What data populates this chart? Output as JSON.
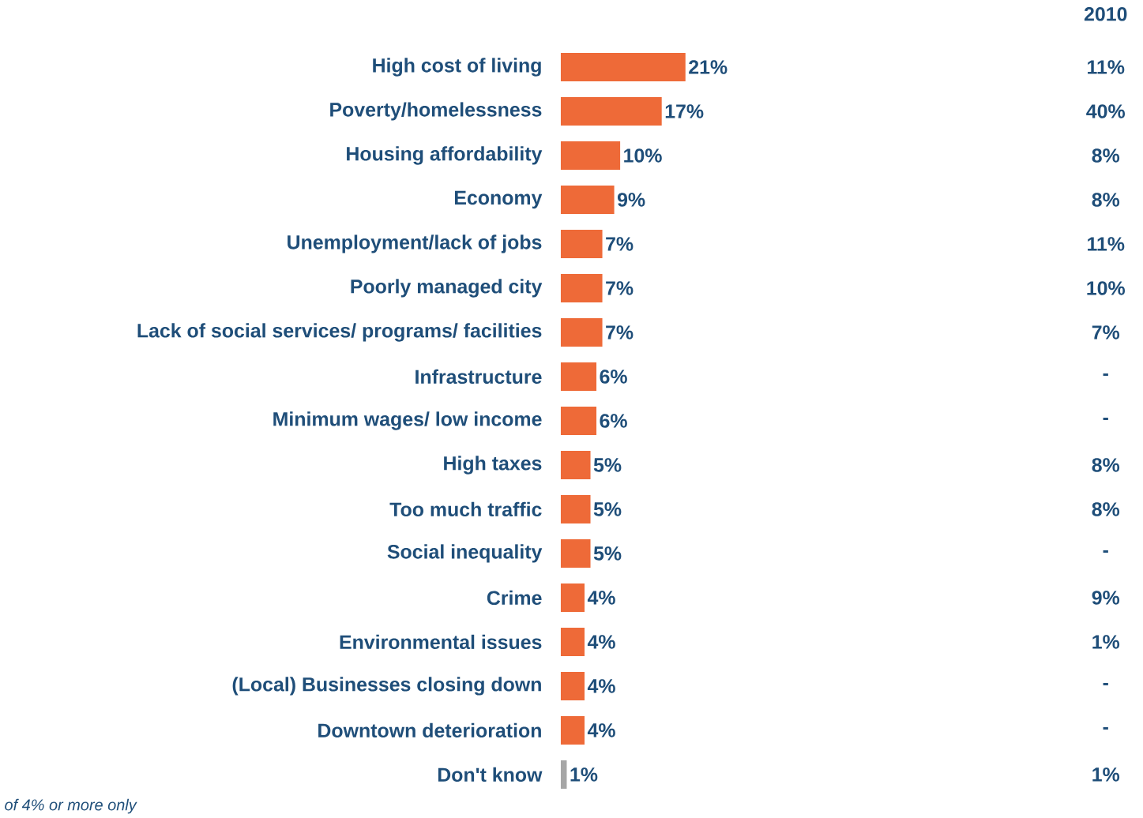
{
  "chart_data": {
    "type": "bar",
    "orientation": "horizontal",
    "categories": [
      "High cost of living",
      "Poverty/homelessness",
      "Housing affordability",
      "Economy",
      "Unemployment/lack of jobs",
      "Poorly managed city",
      "Lack of social services/ programs/ facilities",
      "Infrastructure",
      "Minimum wages/ low income",
      "High taxes",
      "Too much traffic",
      "Social inequality",
      "Crime",
      "Environmental issues",
      "(Local) Businesses closing down",
      "Downtown deterioration",
      "Don't know"
    ],
    "values": [
      21,
      17,
      10,
      9,
      7,
      7,
      7,
      6,
      6,
      5,
      5,
      5,
      4,
      4,
      4,
      4,
      1
    ],
    "value_labels": [
      "21%",
      "17%",
      "10%",
      "9%",
      "7%",
      "7%",
      "7%",
      "6%",
      "6%",
      "5%",
      "5%",
      "5%",
      "4%",
      "4%",
      "4%",
      "4%",
      "1%"
    ],
    "colors": [
      "#ee6a38",
      "#ee6a38",
      "#ee6a38",
      "#ee6a38",
      "#ee6a38",
      "#ee6a38",
      "#ee6a38",
      "#ee6a38",
      "#ee6a38",
      "#ee6a38",
      "#ee6a38",
      "#ee6a38",
      "#ee6a38",
      "#ee6a38",
      "#ee6a38",
      "#ee6a38",
      "#a6a6a6"
    ],
    "annotations": [
      "2010",
      "11%",
      "40%",
      "8%",
      "8%",
      "11%",
      "10%",
      "7%",
      "-",
      "-",
      "8%",
      "8%",
      "-",
      "9%",
      "1%",
      "-",
      "-",
      "1%",
      "of 4% or more only"
    ]
  }
}
